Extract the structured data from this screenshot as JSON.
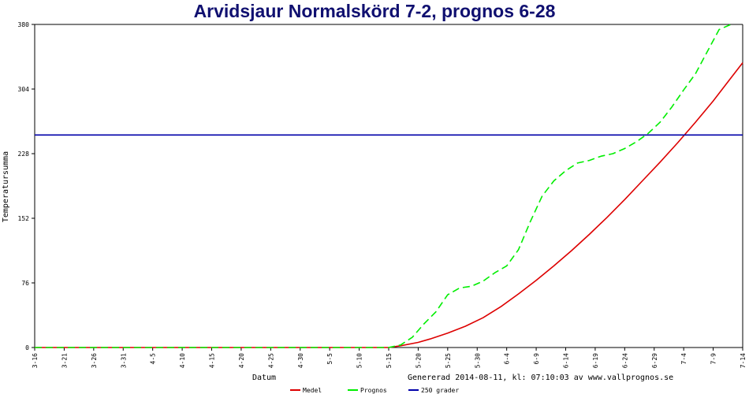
{
  "chart_data": {
    "type": "line",
    "title": "Arvidsjaur Normalskörd 7-2, prognos 6-28",
    "xlabel": "Datum",
    "ylabel": "Temperatursumma",
    "ylim": [
      0,
      380
    ],
    "yticks": [
      0,
      76,
      152,
      228,
      304,
      380
    ],
    "x_start": "3-16",
    "x_tick_step_days": 5,
    "categories": [
      "3-16",
      "3-21",
      "3-26",
      "3-31",
      "4-5",
      "4-10",
      "4-15",
      "4-20",
      "4-25",
      "4-30",
      "5-5",
      "5-10",
      "5-15",
      "5-20",
      "5-25",
      "5-30",
      "6-4",
      "6-9",
      "6-14",
      "6-19",
      "6-24",
      "6-29",
      "7-4",
      "7-9",
      "7-14"
    ],
    "generated_text": "Genererad 2014-08-11, kl: 07:10:03 av www.vallprognos.se",
    "legend_position": "bottom",
    "grid": false,
    "series": [
      {
        "name": "Medel",
        "color": "#dd0000",
        "style": "solid",
        "x": [
          "3-16",
          "5-15",
          "5-17",
          "5-20",
          "5-22",
          "5-25",
          "5-28",
          "5-31",
          "6-3",
          "6-6",
          "6-9",
          "6-12",
          "6-15",
          "6-18",
          "6-21",
          "6-24",
          "6-27",
          "6-30",
          "7-3",
          "7-6",
          "7-9",
          "7-12",
          "7-14"
        ],
        "values": [
          0,
          0,
          2,
          6,
          10,
          17,
          25,
          35,
          48,
          63,
          79,
          96,
          114,
          133,
          153,
          174,
          196,
          218,
          241,
          265,
          290,
          317,
          335
        ]
      },
      {
        "name": "Prognos",
        "color": "#00ee00",
        "style": "dashed",
        "x": [
          "3-16",
          "5-15",
          "5-17",
          "5-19",
          "5-21",
          "5-23",
          "5-25",
          "5-27",
          "5-29",
          "5-31",
          "6-2",
          "6-4",
          "6-6",
          "6-8",
          "6-10",
          "6-12",
          "6-14",
          "6-16",
          "6-18",
          "6-20",
          "6-22",
          "6-24",
          "6-26",
          "6-28",
          "6-30",
          "7-2",
          "7-4",
          "7-6",
          "7-8",
          "7-10",
          "7-12"
        ],
        "values": [
          0,
          0,
          3,
          12,
          28,
          42,
          62,
          70,
          72,
          78,
          88,
          96,
          115,
          148,
          178,
          196,
          208,
          217,
          220,
          225,
          228,
          234,
          242,
          252,
          265,
          283,
          303,
          322,
          348,
          374,
          392
        ]
      },
      {
        "name": "250 grader",
        "color": "#0000aa",
        "style": "solid",
        "x": [
          "3-16",
          "7-14"
        ],
        "values": [
          250,
          250
        ]
      }
    ]
  }
}
